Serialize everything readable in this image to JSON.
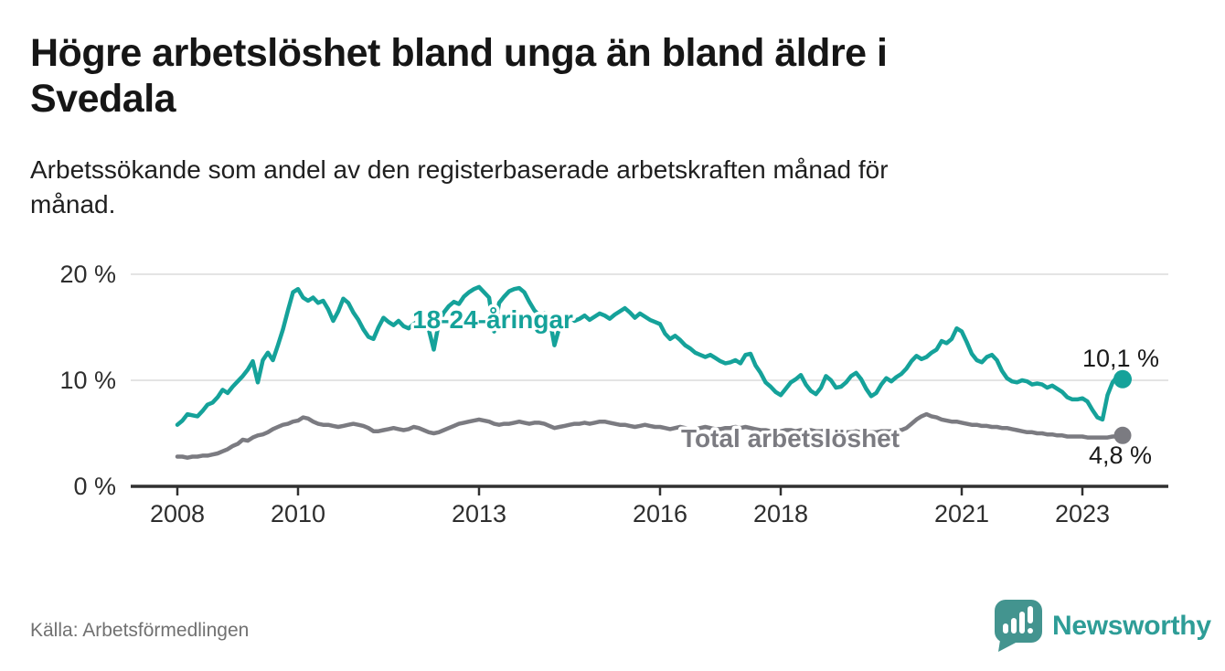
{
  "header": {
    "title_lines": [
      "Högre arbetslöshet bland unga än bland äldre i",
      "Svedala"
    ],
    "subtitle_lines": [
      "Arbetssökande som andel av den registerbaserade arbetskraften månad för",
      "månad."
    ]
  },
  "footer": {
    "source": "Källa: Arbetsförmedlingen",
    "brand_name": "Newsworthy"
  },
  "colors": {
    "young_series": "#15a29a",
    "total_series": "#7b7b81",
    "axis": "#303030",
    "grid": "#dcdcdc",
    "annotation_text": "#1a1a1a",
    "brand_teal": "#2e9d97",
    "logo_bubble": "#43948f",
    "background": "#ffffff"
  },
  "chart_data": {
    "type": "line",
    "title": "Högre arbetslöshet bland unga än bland äldre i Svedala",
    "subtitle": "Arbetssökande som andel av den registerbaserade arbetskraften månad för månad.",
    "xlabel": "",
    "ylabel": "",
    "unit": "%",
    "grid": "horizontal",
    "legend": "inline-labels",
    "x_axis": {
      "ticks": [
        2008,
        2010,
        2013,
        2016,
        2018,
        2021,
        2023
      ],
      "tick_labels": [
        "2008",
        "2010",
        "2013",
        "2016",
        "2018",
        "2021",
        "2023"
      ],
      "range": [
        2007.2,
        2024.4
      ]
    },
    "y_axis": {
      "ticks": [
        0,
        10,
        20
      ],
      "tick_labels": [
        "0 %",
        "10 %",
        "20 %"
      ],
      "range": [
        0,
        20
      ]
    },
    "series": [
      {
        "name": "18-24-åringar",
        "inline_label": "18-24-åringar",
        "color": "#15a29a",
        "end_label": "10,1 %",
        "end_value": 10.1,
        "start_year": 2008,
        "points_per_year": 12,
        "values": [
          5.8,
          6.2,
          6.8,
          6.7,
          6.6,
          7.1,
          7.7,
          7.9,
          8.4,
          9.1,
          8.8,
          9.4,
          9.9,
          10.4,
          11.0,
          11.8,
          9.8,
          11.9,
          12.6,
          11.9,
          13.3,
          14.8,
          16.6,
          18.3,
          18.6,
          17.8,
          17.5,
          17.8,
          17.3,
          17.5,
          16.7,
          15.6,
          16.5,
          17.7,
          17.3,
          16.4,
          15.7,
          14.8,
          14.1,
          13.9,
          15.0,
          15.9,
          15.5,
          15.2,
          15.6,
          15.1,
          14.9,
          15.3,
          15.6,
          15.2,
          14.8,
          12.9,
          15.4,
          16.4,
          17.0,
          17.4,
          17.2,
          17.9,
          18.3,
          18.6,
          18.8,
          18.3,
          17.8,
          14.6,
          17.3,
          17.9,
          18.4,
          18.6,
          18.7,
          18.3,
          17.4,
          16.6,
          16.1,
          16.3,
          15.9,
          13.3,
          15.0,
          16.2,
          16.0,
          15.6,
          15.8,
          16.1,
          15.7,
          16.0,
          16.3,
          16.1,
          15.8,
          16.2,
          16.5,
          16.8,
          16.4,
          15.9,
          16.3,
          16.0,
          15.7,
          15.5,
          15.3,
          14.4,
          13.9,
          14.2,
          13.8,
          13.3,
          13.0,
          12.6,
          12.4,
          12.2,
          12.4,
          12.1,
          11.8,
          11.6,
          11.7,
          11.9,
          11.6,
          12.4,
          12.5,
          11.4,
          10.7,
          9.8,
          9.4,
          8.9,
          8.6,
          9.2,
          9.8,
          10.1,
          10.5,
          9.6,
          9.0,
          8.7,
          9.3,
          10.4,
          10.0,
          9.3,
          9.4,
          9.8,
          10.4,
          10.7,
          10.1,
          9.2,
          8.5,
          8.8,
          9.6,
          10.2,
          9.9,
          10.3,
          10.6,
          11.1,
          11.8,
          12.3,
          12.0,
          12.2,
          12.6,
          12.9,
          13.7,
          13.5,
          13.9,
          14.9,
          14.6,
          13.6,
          12.5,
          11.9,
          11.7,
          12.2,
          12.4,
          11.9,
          10.9,
          10.2,
          9.9,
          9.8,
          10.0,
          9.9,
          9.6,
          9.7,
          9.6,
          9.3,
          9.5,
          9.2,
          8.9,
          8.4,
          8.2,
          8.2,
          8.3,
          8.0,
          7.2,
          6.5,
          6.3,
          8.6,
          9.8,
          10.4,
          10.1
        ]
      },
      {
        "name": "Total arbetslöshet",
        "inline_label": "Total arbetslöshet",
        "color": "#7b7b81",
        "end_label": "4,8 %",
        "end_value": 4.8,
        "start_year": 2008,
        "points_per_year": 12,
        "values": [
          2.8,
          2.8,
          2.7,
          2.8,
          2.8,
          2.9,
          2.9,
          3.0,
          3.1,
          3.3,
          3.5,
          3.8,
          4.0,
          4.4,
          4.3,
          4.6,
          4.8,
          4.9,
          5.1,
          5.4,
          5.6,
          5.8,
          5.9,
          6.1,
          6.2,
          6.5,
          6.4,
          6.1,
          5.9,
          5.8,
          5.8,
          5.7,
          5.6,
          5.7,
          5.8,
          5.9,
          5.8,
          5.7,
          5.5,
          5.2,
          5.2,
          5.3,
          5.4,
          5.5,
          5.4,
          5.3,
          5.4,
          5.6,
          5.5,
          5.3,
          5.1,
          5.0,
          5.1,
          5.3,
          5.5,
          5.7,
          5.9,
          6.0,
          6.1,
          6.2,
          6.3,
          6.2,
          6.1,
          5.9,
          5.8,
          5.9,
          5.9,
          6.0,
          6.1,
          6.0,
          5.9,
          6.0,
          6.0,
          5.9,
          5.7,
          5.5,
          5.6,
          5.7,
          5.8,
          5.9,
          5.9,
          6.0,
          5.9,
          6.0,
          6.1,
          6.1,
          6.0,
          5.9,
          5.8,
          5.8,
          5.7,
          5.6,
          5.7,
          5.8,
          5.7,
          5.6,
          5.6,
          5.5,
          5.4,
          5.5,
          5.6,
          5.5,
          5.4,
          5.4,
          5.5,
          5.6,
          5.5,
          5.4,
          5.4,
          5.5,
          5.5,
          5.6,
          5.5,
          5.6,
          5.5,
          5.4,
          5.3,
          5.3,
          5.2,
          5.2,
          5.2,
          5.3,
          5.3,
          5.2,
          5.3,
          5.3,
          5.3,
          5.2,
          5.2,
          5.3,
          5.2,
          5.2,
          5.2,
          5.1,
          5.1,
          5.2,
          5.1,
          5.1,
          5.1,
          5.1,
          5.2,
          5.2,
          5.2,
          5.3,
          5.3,
          5.5,
          5.9,
          6.3,
          6.6,
          6.8,
          6.6,
          6.5,
          6.3,
          6.2,
          6.1,
          6.1,
          6.0,
          5.9,
          5.8,
          5.8,
          5.7,
          5.7,
          5.6,
          5.6,
          5.5,
          5.5,
          5.4,
          5.3,
          5.2,
          5.1,
          5.1,
          5.0,
          5.0,
          4.9,
          4.9,
          4.8,
          4.8,
          4.7,
          4.7,
          4.7,
          4.7,
          4.6,
          4.6,
          4.6,
          4.6,
          4.6,
          4.7,
          4.7,
          4.8
        ]
      }
    ]
  }
}
